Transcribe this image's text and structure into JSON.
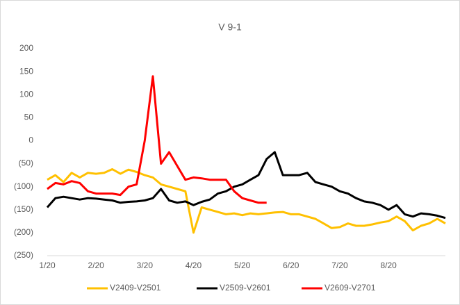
{
  "chart_data": {
    "type": "line",
    "title": "V 9-1",
    "categories": [
      "1/20",
      null,
      null,
      null,
      null,
      null,
      "2/20",
      null,
      null,
      null,
      null,
      null,
      "3/20",
      null,
      null,
      null,
      null,
      null,
      "4/20",
      null,
      null,
      null,
      null,
      null,
      "5/20",
      null,
      null,
      null,
      null,
      null,
      "6/20",
      null,
      null,
      null,
      null,
      null,
      "7/20",
      null,
      null,
      null,
      null,
      null,
      "8/20",
      null,
      null,
      null,
      null,
      null,
      null,
      null
    ],
    "series": [
      {
        "name": "V2409-V2501",
        "color": "#ffc000",
        "values": [
          -85,
          -75,
          -90,
          -70,
          -80,
          -70,
          -72,
          -70,
          -62,
          -72,
          -63,
          -68,
          -75,
          -80,
          -95,
          -100,
          -105,
          -110,
          -200,
          -145,
          -150,
          -155,
          -160,
          -158,
          -162,
          -158,
          -160,
          -158,
          -156,
          -155,
          -160,
          -160,
          -165,
          -170,
          -180,
          -190,
          -188,
          -180,
          -185,
          -185,
          -182,
          -178,
          -175,
          -165,
          -175,
          -195,
          -185,
          -180,
          -170,
          -180
        ]
      },
      {
        "name": "V2509-V2601",
        "color": "#000000",
        "values": [
          -145,
          -125,
          -122,
          -125,
          -128,
          -125,
          -126,
          -128,
          -130,
          -135,
          -133,
          -132,
          -130,
          -125,
          -105,
          -130,
          -135,
          -132,
          -140,
          -133,
          -128,
          -115,
          -110,
          -100,
          -95,
          -85,
          -75,
          -40,
          -25,
          -75,
          -75,
          -75,
          -70,
          -90,
          -95,
          -100,
          -110,
          -115,
          -125,
          -132,
          -135,
          -140,
          -150,
          -140,
          -160,
          -165,
          -158,
          -160,
          -163,
          -168
        ]
      },
      {
        "name": "V2609-V2701",
        "color": "#ff0000",
        "values": [
          -105,
          -92,
          -95,
          -88,
          -92,
          -110,
          -115,
          -115,
          -115,
          -118,
          -100,
          -95,
          0,
          140,
          -50,
          -25,
          -55,
          -85,
          -80,
          -82,
          -85,
          -85,
          -85,
          -110,
          -125,
          -130,
          -135,
          -135,
          null,
          null,
          null,
          null,
          null,
          null,
          null,
          null,
          null,
          null,
          null,
          null,
          null,
          null,
          null,
          null,
          null,
          null,
          null,
          null,
          null,
          null
        ]
      }
    ],
    "ylim": [
      -250,
      200
    ],
    "yticks": [
      {
        "value": -250,
        "label": "(250)"
      },
      {
        "value": -200,
        "label": "(200)"
      },
      {
        "value": -150,
        "label": "(150)"
      },
      {
        "value": -100,
        "label": "(100)"
      },
      {
        "value": -50,
        "label": "(50)"
      },
      0,
      50,
      100,
      150,
      200
    ],
    "grid": false
  }
}
